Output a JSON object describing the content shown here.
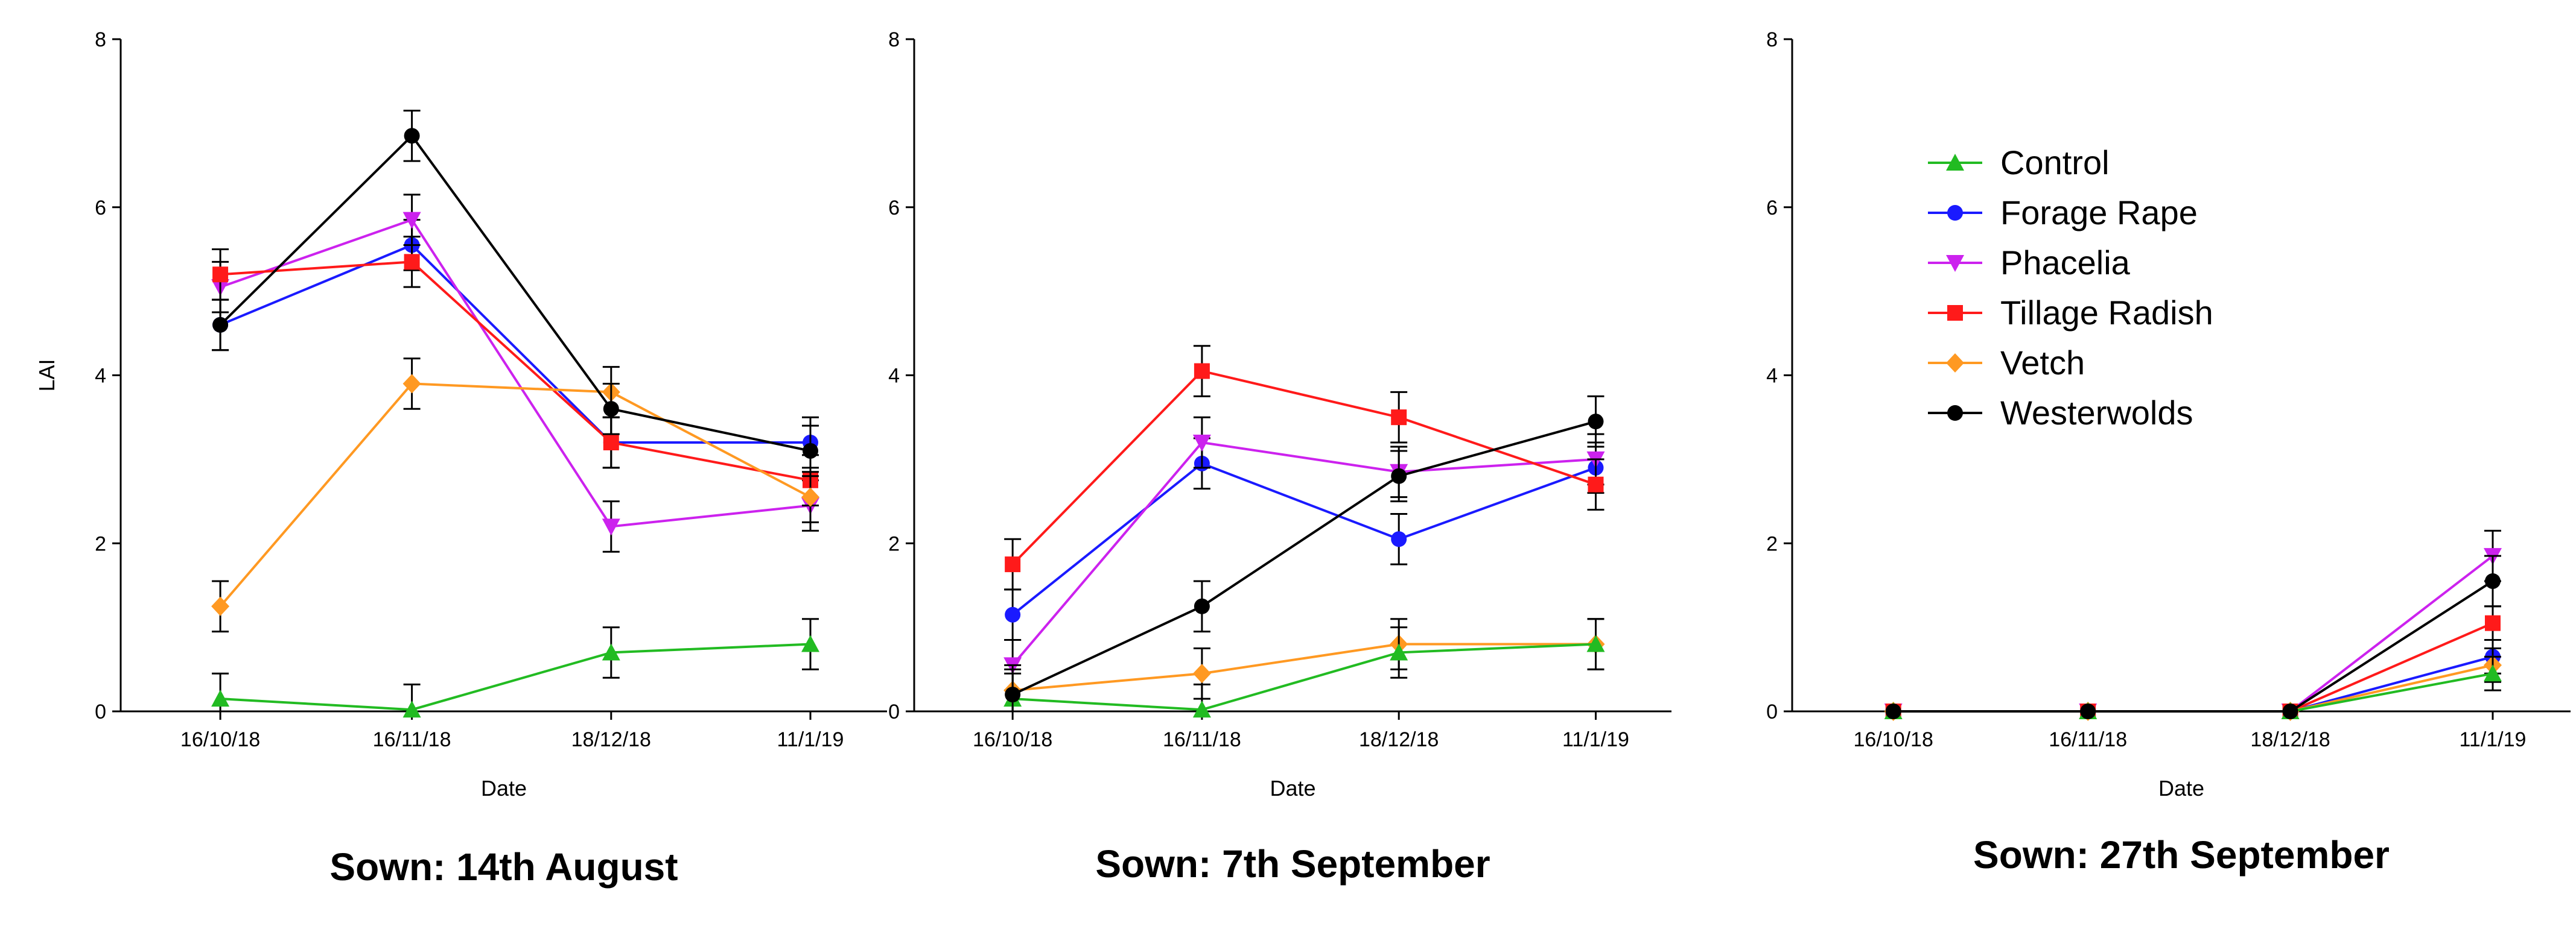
{
  "chart_data": [
    {
      "type": "line",
      "title": "Sown: 14th August",
      "xlabel": "Date",
      "ylabel": "LAI",
      "categories": [
        "16/10/18",
        "16/11/18",
        "18/12/18",
        "11/1/19"
      ],
      "ylim": [
        0,
        8
      ],
      "yticks": [
        0,
        2,
        4,
        6,
        8
      ],
      "series": [
        {
          "name": "Control",
          "values": [
            0.15,
            0.02,
            0.7,
            0.8
          ],
          "errors": [
            0.3,
            0.3,
            0.3,
            0.3
          ]
        },
        {
          "name": "Forage Rape",
          "values": [
            4.6,
            5.55,
            3.2,
            3.2
          ],
          "errors": [
            0.3,
            0.3,
            0.3,
            0.3
          ]
        },
        {
          "name": "Phacelia",
          "values": [
            5.05,
            5.85,
            2.2,
            2.45
          ],
          "errors": [
            0.3,
            0.3,
            0.3,
            0.3
          ]
        },
        {
          "name": "Tillage Radish",
          "values": [
            5.2,
            5.35,
            3.2,
            2.75
          ],
          "errors": [
            0.3,
            0.3,
            0.3,
            0.3
          ]
        },
        {
          "name": "Vetch",
          "values": [
            1.25,
            3.9,
            3.8,
            2.55
          ],
          "errors": [
            0.3,
            0.3,
            0.3,
            0.3
          ]
        },
        {
          "name": "Westerwolds",
          "values": [
            4.6,
            6.85,
            3.6,
            3.1
          ],
          "errors": [
            0.3,
            0.3,
            0.3,
            0.3
          ]
        }
      ]
    },
    {
      "type": "line",
      "title": "Sown: 7th September",
      "xlabel": "Date",
      "ylabel": "",
      "categories": [
        "16/10/18",
        "16/11/18",
        "18/12/18",
        "11/1/19"
      ],
      "ylim": [
        0,
        8
      ],
      "yticks": [
        0,
        2,
        4,
        6,
        8
      ],
      "series": [
        {
          "name": "Control",
          "values": [
            0.15,
            0.02,
            0.7,
            0.8
          ],
          "errors": [
            0.3,
            0.3,
            0.3,
            0.3
          ]
        },
        {
          "name": "Forage Rape",
          "values": [
            1.15,
            2.95,
            2.05,
            2.9
          ],
          "errors": [
            0.3,
            0.3,
            0.3,
            0.3
          ]
        },
        {
          "name": "Phacelia",
          "values": [
            0.55,
            3.2,
            2.85,
            3.0
          ],
          "errors": [
            0.3,
            0.3,
            0.3,
            0.3
          ]
        },
        {
          "name": "Tillage Radish",
          "values": [
            1.75,
            4.05,
            3.5,
            2.7
          ],
          "errors": [
            0.3,
            0.3,
            0.3,
            0.3
          ]
        },
        {
          "name": "Vetch",
          "values": [
            0.25,
            0.45,
            0.8,
            0.8
          ],
          "errors": [
            0.3,
            0.3,
            0.3,
            0.3
          ]
        },
        {
          "name": "Westerwolds",
          "values": [
            0.2,
            1.25,
            2.8,
            3.45
          ],
          "errors": [
            0.3,
            0.3,
            0.3,
            0.3
          ]
        }
      ]
    },
    {
      "type": "line",
      "title": "Sown: 27th September",
      "xlabel": "Date",
      "ylabel": "",
      "categories": [
        "16/10/18",
        "16/11/18",
        "18/12/18",
        "11/1/19"
      ],
      "ylim": [
        0,
        8
      ],
      "yticks": [
        0,
        2,
        4,
        6,
        8
      ],
      "legend": "top-right",
      "series": [
        {
          "name": "Control",
          "values": [
            0.0,
            0.0,
            0.0,
            0.45
          ],
          "errors": [
            0.0,
            0.0,
            0.0,
            0.2
          ]
        },
        {
          "name": "Forage Rape",
          "values": [
            0.0,
            0.0,
            0.0,
            0.65
          ],
          "errors": [
            0.0,
            0.0,
            0.0,
            0.2
          ]
        },
        {
          "name": "Phacelia",
          "values": [
            0.0,
            0.0,
            0.0,
            1.85
          ],
          "errors": [
            0.0,
            0.0,
            0.0,
            0.3
          ]
        },
        {
          "name": "Tillage Radish",
          "values": [
            0.0,
            0.0,
            0.0,
            1.05
          ],
          "errors": [
            0.0,
            0.0,
            0.0,
            0.2
          ]
        },
        {
          "name": "Vetch",
          "values": [
            0.0,
            0.0,
            0.0,
            0.55
          ],
          "errors": [
            0.0,
            0.0,
            0.0,
            0.2
          ]
        },
        {
          "name": "Westerwolds",
          "values": [
            0.0,
            0.0,
            0.0,
            1.55
          ],
          "errors": [
            0.0,
            0.0,
            0.0,
            0.3
          ]
        }
      ]
    }
  ],
  "legend": [
    {
      "name": "Control",
      "color": "#22bb22",
      "marker": "triangle-up"
    },
    {
      "name": "Forage Rape",
      "color": "#1a1aff",
      "marker": "circle"
    },
    {
      "name": "Phacelia",
      "color": "#cc22ee",
      "marker": "triangle-down"
    },
    {
      "name": "Tillage Radish",
      "color": "#ff1a1a",
      "marker": "square"
    },
    {
      "name": "Vetch",
      "color": "#ff9922",
      "marker": "diamond"
    },
    {
      "name": "Westerwolds",
      "color": "#000000",
      "marker": "circle"
    }
  ]
}
